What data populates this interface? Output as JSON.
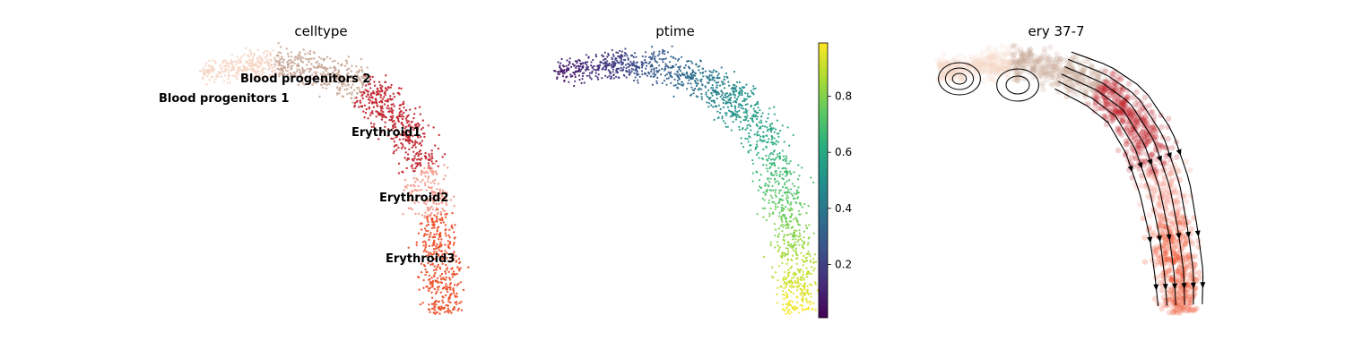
{
  "figure": {
    "panels": [
      {
        "title": "celltype"
      },
      {
        "title": "ptime"
      },
      {
        "title": "ery 37-7"
      }
    ]
  },
  "chart_data": [
    {
      "type": "scatter",
      "title": "celltype",
      "encoding": "categorical",
      "legend": "on data",
      "categories": [
        {
          "name": "Blood progenitors 1",
          "color": "#f6d5c4"
        },
        {
          "name": "Blood progenitors 2",
          "color": "#c9a998"
        },
        {
          "name": "Erythroid1",
          "color": "#c0202a"
        },
        {
          "name": "Erythroid2",
          "color": "#f4988a"
        },
        {
          "name": "Erythroid3",
          "color": "#ec4a24"
        }
      ]
    },
    {
      "type": "scatter",
      "title": "ptime",
      "encoding": "continuous",
      "colormap": "viridis",
      "colorbar": {
        "range": [
          0.01,
          0.99
        ],
        "ticks": [
          0.2,
          0.4,
          0.6,
          0.8
        ],
        "tick_labels": [
          "0.2",
          "0.4",
          "0.6",
          "0.8"
        ]
      }
    },
    {
      "type": "scatter",
      "title": "ery 37-7",
      "encoding": "categorical",
      "overlay": "velocity streamlines with arrowheads",
      "colors": [
        "#f6d5c4",
        "#c9a998",
        "#c0202a",
        "#f4988a",
        "#ec4a24"
      ]
    }
  ]
}
